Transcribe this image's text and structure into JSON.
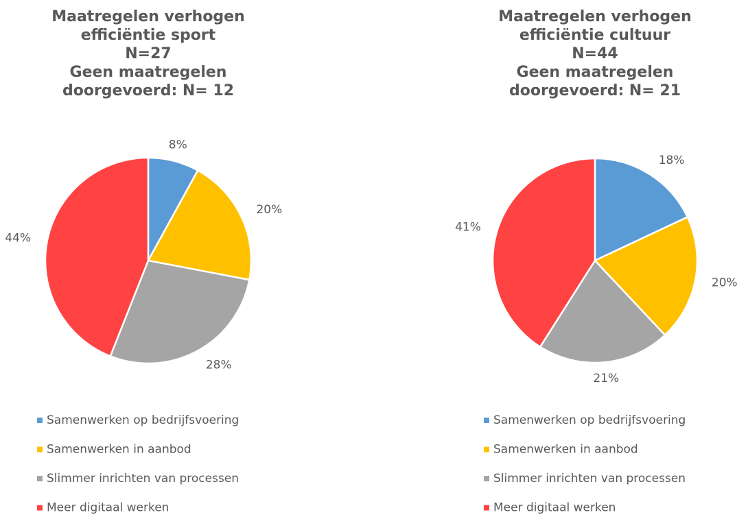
{
  "chart_data": [
    {
      "type": "pie",
      "title": [
        "Maatregelen verhogen",
        "efficiëntie sport",
        "N=27",
        "Geen maatregelen",
        "doorgevoerd: N= 12"
      ],
      "categories": [
        "Samenwerken op bedrijfsvoering",
        "Samenwerken in aanbod",
        "Slimmer inrichten van processen",
        "Meer digitaal werken"
      ],
      "values": [
        8,
        20,
        28,
        44
      ],
      "value_labels": [
        "8%",
        "20%",
        "28%",
        "44%"
      ],
      "colors": [
        "#5b9bd5",
        "#ffc000",
        "#a5a5a5",
        "#ff4343"
      ],
      "legend": "bottom"
    },
    {
      "type": "pie",
      "title": [
        "Maatregelen verhogen",
        "efficiëntie cultuur",
        "N=44",
        "Geen maatregelen",
        "doorgevoerd: N= 21"
      ],
      "categories": [
        "Samenwerken op bedrijfsvoering",
        "Samenwerken in aanbod",
        "Slimmer inrichten van processen",
        "Meer digitaal werken"
      ],
      "values": [
        18,
        20,
        21,
        41
      ],
      "value_labels": [
        "18%",
        "20%",
        "21%",
        "41%"
      ],
      "colors": [
        "#5b9bd5",
        "#ffc000",
        "#a5a5a5",
        "#ff4343"
      ],
      "legend": "bottom"
    }
  ]
}
